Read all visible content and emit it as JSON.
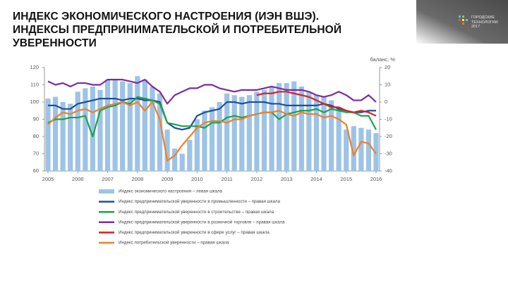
{
  "logo": [
    "ГОРОДСКИЕ",
    "ТЕХНОЛОГИИ",
    "2017"
  ],
  "chart_data": {
    "type": "combo",
    "title": [
      "ИНДЕКС ЭКОНОМИЧЕСКОГО НАСТРОЕНИЯ (ИЭН ВШЭ).",
      "ИНДЕКСЫ ПРЕДПРИНИМАТЕЛЬСКОЙ И ПОТРЕБИТЕЛЬНОЙ УВЕРЕННОСТИ"
    ],
    "y2_label": "баланс, %",
    "categories": [
      "2005",
      null,
      null,
      null,
      "2006",
      null,
      null,
      null,
      "2007",
      null,
      null,
      null,
      "2008",
      null,
      null,
      null,
      "2009",
      null,
      null,
      null,
      "2010",
      null,
      null,
      null,
      "2011",
      null,
      null,
      null,
      "2012",
      null,
      null,
      null,
      "2013",
      null,
      null,
      null,
      "2014",
      null,
      null,
      null,
      "2015",
      null,
      null,
      null,
      "2016"
    ],
    "ylim": [
      60,
      120
    ],
    "yticks": [
      60,
      70,
      80,
      90,
      100,
      110,
      120
    ],
    "y2lim": [
      -40,
      20
    ],
    "y2ticks": [
      -40,
      -30,
      -20,
      -10,
      0,
      10,
      20
    ],
    "grid": false,
    "series": [
      {
        "name": "Индекс экономического настроения – левая шкала",
        "kind": "bar",
        "axis": "y",
        "color": "#9dc3e6",
        "values": [
          102,
          103,
          100,
          99,
          106,
          108,
          109,
          107,
          113,
          113,
          112,
          111,
          115,
          113,
          109,
          105,
          84,
          73,
          70,
          78,
          90,
          95,
          97,
          100,
          105,
          104,
          103,
          104,
          106,
          107,
          109,
          111,
          111,
          112,
          109,
          106,
          104,
          103,
          101,
          97,
          84,
          86,
          85,
          84,
          82
        ]
      },
      {
        "name": "Индекс предпринимательской уверенности в промышленности – правая шкала",
        "kind": "line",
        "axis": "y2",
        "color": "#1f4e9c",
        "values": [
          -2,
          -2,
          -4,
          -4,
          -1,
          0,
          1,
          2,
          2,
          2,
          1,
          2,
          2,
          1,
          1,
          0,
          -12,
          -15,
          -16,
          -15,
          -8,
          -6,
          -5,
          -4,
          0,
          0,
          -1,
          0,
          0,
          0,
          -1,
          -1,
          -2,
          -2,
          -2,
          -2,
          -2,
          -1,
          -2,
          -4,
          -5,
          -6,
          -6,
          -5,
          -5
        ]
      },
      {
        "name": "Индекс предпринимательской уверенности в строительстве – правая шкала",
        "kind": "line",
        "axis": "y2",
        "color": "#1aa34a",
        "values": [
          -12,
          -10,
          -10,
          -9,
          -9,
          -8,
          -20,
          -5,
          -3,
          -2,
          0,
          -1,
          3,
          2,
          1,
          -1,
          -12,
          -13,
          -14,
          -14,
          -14,
          -15,
          -12,
          -12,
          -9,
          -8,
          -9,
          -8,
          -7,
          -6,
          -6,
          -10,
          -7,
          -6,
          -5,
          -5,
          -4,
          -6,
          -4,
          -5,
          -6,
          -6,
          -8,
          -8,
          -16
        ]
      },
      {
        "name": "Индекс предпринимательской уверенности в розничной торговле – правая шкала",
        "kind": "line",
        "axis": "y2",
        "color": "#7b2c9e",
        "values": [
          12,
          10,
          11,
          9,
          11,
          11,
          10,
          10,
          13,
          13,
          13,
          12,
          11,
          13,
          9,
          6,
          -1,
          4,
          6,
          8,
          8,
          10,
          10,
          8,
          7,
          6,
          7,
          7,
          7,
          8,
          9,
          8,
          7,
          7,
          7,
          6,
          4,
          3,
          4,
          6,
          4,
          1,
          1,
          4,
          0
        ]
      },
      {
        "name": "Индекс предпринимательской уверенности в сфере услуг – правая шкала",
        "kind": "line",
        "axis": "y2",
        "color": "#e01f1f",
        "values": [
          null,
          null,
          null,
          null,
          null,
          null,
          null,
          null,
          null,
          null,
          null,
          null,
          null,
          null,
          null,
          null,
          null,
          null,
          null,
          null,
          null,
          null,
          null,
          null,
          null,
          null,
          null,
          null,
          4,
          5,
          5,
          6,
          6,
          5,
          4,
          3,
          1,
          -1,
          -3,
          -3,
          -5,
          -6,
          -5,
          -6,
          -8
        ]
      },
      {
        "name": "Индекс потребительской уверенности – правая шкала",
        "kind": "line",
        "axis": "y2",
        "color": "#f07f2a",
        "values": [
          -13,
          -9,
          -6,
          -7,
          -5,
          -4,
          -6,
          -4,
          -2,
          -1,
          0,
          -2,
          0,
          -5,
          0,
          -10,
          -34,
          -31,
          -25,
          -20,
          -15,
          -12,
          -11,
          -11,
          -12,
          -10,
          -10,
          -8,
          -7,
          -6,
          -6,
          -5,
          -7,
          -8,
          -6,
          -7,
          -7,
          -9,
          -8,
          -10,
          -13,
          -31,
          -23,
          -24,
          -30
        ]
      }
    ]
  }
}
